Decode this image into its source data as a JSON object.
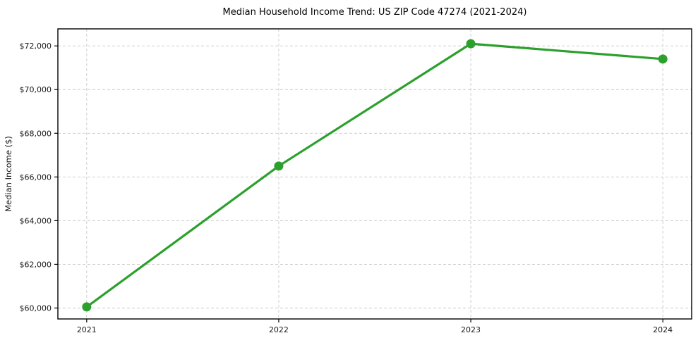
{
  "figure": {
    "background": "#ffffff"
  },
  "chart_data": {
    "type": "line",
    "title": "Median Household Income Trend: US ZIP Code 47274 (2021-2024)",
    "xlabel": "",
    "ylabel": "Median Income ($)",
    "categories": [
      "2021",
      "2022",
      "2023",
      "2024"
    ],
    "x": [
      2021,
      2022,
      2023,
      2024
    ],
    "series": [
      {
        "values": [
          60050,
          66500,
          72100,
          71400
        ],
        "color": "#2ca02c",
        "marker": "circle"
      }
    ],
    "y_ticks": [
      60000,
      62000,
      64000,
      66000,
      68000,
      70000,
      72000
    ],
    "y_tick_labels": [
      "$60,000",
      "$62,000",
      "$64,000",
      "$66,000",
      "$68,000",
      "$70,000",
      "$72,000"
    ],
    "xlim": [
      2020.85,
      2024.15
    ],
    "ylim": [
      59500,
      72780
    ],
    "grid": true,
    "grid_style": "dashed",
    "grid_color": "#c9c9c9",
    "spine_color": "#000000",
    "text_color": "#1a1a1a",
    "legend": "none"
  }
}
